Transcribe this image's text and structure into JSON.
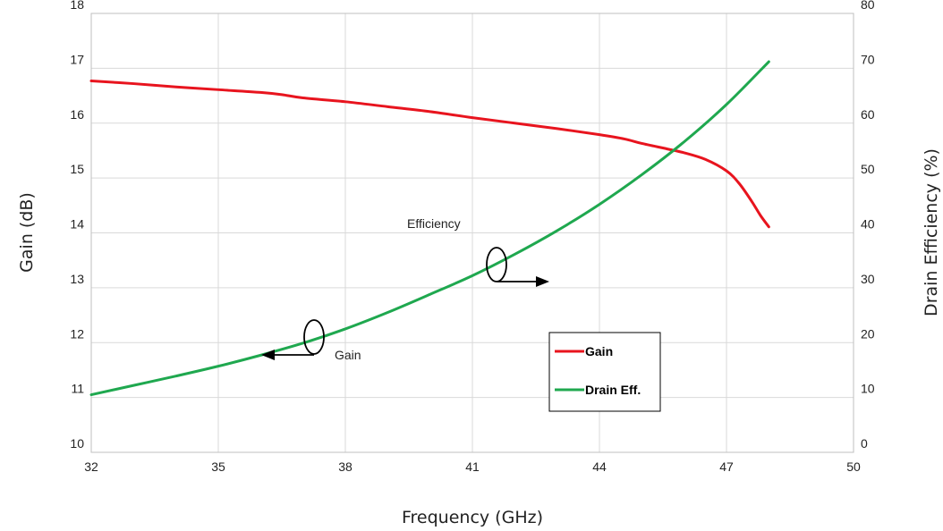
{
  "chart_data": {
    "type": "line",
    "xlabel": "Frequency (GHz)",
    "ylabel": "Gain (dB)",
    "y2label": "Drain Efficiency (%)",
    "xlim": [
      32,
      50
    ],
    "ylim": [
      10,
      18
    ],
    "y2lim": [
      0,
      80
    ],
    "xticks": [
      "32",
      "35",
      "38",
      "41",
      "44",
      "47",
      "50"
    ],
    "yticks": [
      "10",
      "11",
      "12",
      "13",
      "14",
      "15",
      "16",
      "17",
      "18"
    ],
    "y2ticks": [
      "0",
      "10",
      "20",
      "30",
      "40",
      "50",
      "60",
      "70",
      "80"
    ],
    "grid": true,
    "legend_position": "inside-lower-right",
    "series": [
      {
        "name": "Gain",
        "axis": "left",
        "color": "#e8141e",
        "points": [
          [
            32,
            16.77
          ],
          [
            33,
            16.72
          ],
          [
            34,
            16.66
          ],
          [
            35,
            16.61
          ],
          [
            36,
            16.56
          ],
          [
            36.5,
            16.52
          ],
          [
            37,
            16.46
          ],
          [
            38,
            16.39
          ],
          [
            39,
            16.3
          ],
          [
            40,
            16.21
          ],
          [
            41,
            16.1
          ],
          [
            42,
            16.0
          ],
          [
            43,
            15.9
          ],
          [
            44,
            15.79
          ],
          [
            44.6,
            15.71
          ],
          [
            45,
            15.63
          ],
          [
            45.6,
            15.53
          ],
          [
            46,
            15.46
          ],
          [
            46.5,
            15.34
          ],
          [
            47,
            15.13
          ],
          [
            47.3,
            14.9
          ],
          [
            47.6,
            14.57
          ],
          [
            47.8,
            14.32
          ],
          [
            48,
            14.11
          ]
        ]
      },
      {
        "name": "Drain Eff.",
        "axis": "right",
        "color": "#1fa84f",
        "points": [
          [
            32,
            10.5
          ],
          [
            33,
            12.2
          ],
          [
            34,
            13.9
          ],
          [
            35,
            15.7
          ],
          [
            36,
            17.7
          ],
          [
            37,
            19.9
          ],
          [
            38,
            22.5
          ],
          [
            39,
            25.5
          ],
          [
            40,
            28.8
          ],
          [
            41,
            32.2
          ],
          [
            42,
            36.1
          ],
          [
            43,
            40.4
          ],
          [
            44,
            45.2
          ],
          [
            45,
            50.6
          ],
          [
            46,
            56.6
          ],
          [
            47,
            63.4
          ],
          [
            48,
            71.2
          ]
        ]
      }
    ],
    "annotations": [
      {
        "text": "Efficiency",
        "points_to": "right-axis"
      },
      {
        "text": "Gain",
        "points_to": "left-axis"
      }
    ]
  }
}
